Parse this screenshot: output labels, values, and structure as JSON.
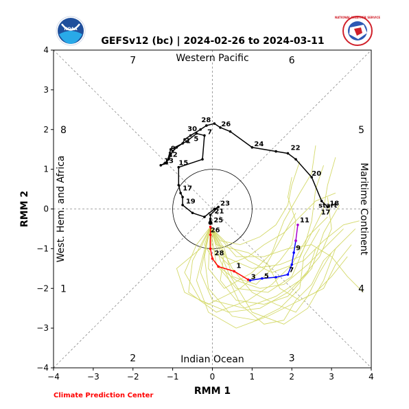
{
  "chart_data": {
    "type": "line",
    "title": "GEFSv12 (bc) | 2024-02-26 to 2024-03-11",
    "xlabel": "RMM 1",
    "ylabel": "RMM 2",
    "xlim": [
      -4,
      4
    ],
    "ylim": [
      -4,
      4
    ],
    "xticks": [
      "−4",
      "−3",
      "−2",
      "−1",
      "0",
      "1",
      "2",
      "3",
      "4"
    ],
    "yticks": [
      "−4",
      "−3",
      "−2",
      "−1",
      "0",
      "1",
      "2",
      "3",
      "4"
    ],
    "regions": {
      "top": "Western Pacific",
      "bottom": "Indian Ocean",
      "left": "West. Hem. and Africa",
      "right": "Maritime Continent"
    },
    "phases": [
      {
        "label": "1",
        "x": -3.75,
        "y": -2.0
      },
      {
        "label": "2",
        "x": -2.0,
        "y": -3.75
      },
      {
        "label": "3",
        "x": 2.0,
        "y": -3.75
      },
      {
        "label": "4",
        "x": 3.75,
        "y": -2.0
      },
      {
        "label": "5",
        "x": 3.75,
        "y": 2.0
      },
      {
        "label": "6",
        "x": 2.0,
        "y": 3.75
      },
      {
        "label": "7",
        "x": -2.0,
        "y": 3.75
      },
      {
        "label": "8",
        "x": -3.75,
        "y": 2.0
      }
    ],
    "credit": "Climate Prediction Center",
    "logos": {
      "left": "NOAA",
      "right": "NATIONAL WEATHER SERVICE"
    },
    "series": [
      {
        "color": "#000000",
        "points": [
          [
            2.9,
            0.05
          ],
          [
            2.75,
            0.2
          ],
          [
            2.5,
            0.8
          ],
          [
            2.1,
            1.25
          ],
          [
            1.9,
            1.4
          ],
          [
            1.6,
            1.45
          ],
          [
            1.0,
            1.55
          ],
          [
            0.45,
            1.95
          ],
          [
            0.2,
            2.05
          ],
          [
            0.05,
            2.15
          ],
          [
            -0.15,
            2.1
          ],
          [
            -0.3,
            2.0
          ],
          [
            -0.55,
            1.85
          ],
          [
            -0.7,
            1.75
          ],
          [
            -0.75,
            1.65
          ],
          [
            -0.9,
            1.55
          ],
          [
            -1.0,
            1.45
          ],
          [
            -1.05,
            1.35
          ],
          [
            -1.1,
            1.25
          ],
          [
            -1.2,
            1.15
          ],
          [
            -1.3,
            1.1
          ],
          [
            -1.15,
            1.15
          ],
          [
            -1.05,
            1.5
          ],
          [
            -0.65,
            1.7
          ],
          [
            -0.4,
            1.9
          ],
          [
            -0.2,
            1.85
          ],
          [
            -0.25,
            1.25
          ],
          [
            -0.85,
            1.05
          ],
          [
            -0.85,
            0.6
          ],
          [
            -0.8,
            0.4
          ],
          [
            -0.75,
            0.3
          ],
          [
            -0.75,
            0.1
          ],
          [
            -0.5,
            -0.1
          ],
          [
            -0.2,
            -0.2
          ],
          [
            0.05,
            0.0
          ],
          [
            0.15,
            0.05
          ],
          [
            -0.05,
            -0.15
          ],
          [
            -0.05,
            -0.25
          ],
          [
            -0.05,
            -0.3
          ]
        ],
        "labels": [
          {
            "text": "18",
            "x": 2.9,
            "y": 0.05
          },
          {
            "text": "start",
            "x": 2.62,
            "y": 0.0
          },
          {
            "text": "17",
            "x": 2.68,
            "y": -0.17
          },
          {
            "text": "20",
            "x": 2.45,
            "y": 0.8
          },
          {
            "text": "22",
            "x": 1.92,
            "y": 1.45
          },
          {
            "text": "24",
            "x": 1.0,
            "y": 1.55
          },
          {
            "text": "26",
            "x": 0.17,
            "y": 2.05
          },
          {
            "text": "28",
            "x": -0.33,
            "y": 2.15
          },
          {
            "text": "30",
            "x": -0.68,
            "y": 1.93
          },
          {
            "text": "7",
            "x": -0.18,
            "y": 1.85
          },
          {
            "text": "5",
            "x": -0.52,
            "y": 1.68
          },
          {
            "text": "1",
            "x": -0.72,
            "y": 1.62
          },
          {
            "text": "9",
            "x": -1.1,
            "y": 1.43
          },
          {
            "text": "12",
            "x": -1.17,
            "y": 1.28
          },
          {
            "text": "13",
            "x": -1.27,
            "y": 1.12
          },
          {
            "text": "15",
            "x": -0.9,
            "y": 1.07
          },
          {
            "text": "17",
            "x": -0.8,
            "y": 0.43
          },
          {
            "text": "19",
            "x": -0.72,
            "y": 0.1
          },
          {
            "text": "23",
            "x": 0.15,
            "y": 0.05
          },
          {
            "text": "21",
            "x": 0.0,
            "y": -0.15
          },
          {
            "text": "25",
            "x": -0.02,
            "y": -0.37
          },
          {
            "text": "26",
            "x": -0.1,
            "y": -0.62
          }
        ]
      },
      {
        "color": "#ff0000",
        "points": [
          [
            -0.05,
            -0.45
          ],
          [
            -0.05,
            -0.65
          ],
          [
            -0.05,
            -1.0
          ],
          [
            0.0,
            -1.25
          ],
          [
            0.15,
            -1.45
          ],
          [
            0.55,
            -1.57
          ],
          [
            0.9,
            -1.78
          ]
        ],
        "labels": [
          {
            "text": "28",
            "x": 0.0,
            "y": -1.2
          },
          {
            "text": "1",
            "x": 0.55,
            "y": -1.52
          },
          {
            "text": "3",
            "x": 0.92,
            "y": -1.8
          }
        ]
      },
      {
        "color": "#0000ff",
        "points": [
          [
            0.95,
            -1.8
          ],
          [
            1.25,
            -1.75
          ],
          [
            1.6,
            -1.72
          ],
          [
            1.9,
            -1.65
          ],
          [
            2.0,
            -1.4
          ],
          [
            2.05,
            -1.1
          ],
          [
            2.1,
            -0.8
          ]
        ],
        "labels": [
          {
            "text": "5",
            "x": 1.25,
            "y": -1.78
          },
          {
            "text": "7",
            "x": 1.88,
            "y": -1.62
          },
          {
            "text": "9",
            "x": 2.05,
            "y": -1.07
          }
        ]
      },
      {
        "color": "#aa00cc",
        "points": [
          [
            2.1,
            -0.8
          ],
          [
            2.15,
            -0.4
          ]
        ],
        "labels": [
          {
            "text": "11",
            "x": 2.15,
            "y": -0.37
          }
        ]
      }
    ],
    "ensemble_color": "#d4d96a",
    "ensemble": [
      [
        [
          -0.05,
          -0.45
        ],
        [
          0.3,
          -1.1
        ],
        [
          0.2,
          -1.8
        ],
        [
          0.6,
          -2.3
        ],
        [
          1.3,
          -2.4
        ],
        [
          1.9,
          -2.2
        ],
        [
          2.5,
          -1.5
        ],
        [
          2.8,
          -0.6
        ],
        [
          3.2,
          0.1
        ]
      ],
      [
        [
          -0.05,
          -0.45
        ],
        [
          -0.2,
          -1.2
        ],
        [
          -0.1,
          -2.0
        ],
        [
          0.5,
          -2.7
        ],
        [
          1.1,
          -2.8
        ],
        [
          1.7,
          -2.5
        ],
        [
          2.2,
          -2.0
        ],
        [
          2.3,
          -1.2
        ],
        [
          2.7,
          -0.5
        ]
      ],
      [
        [
          -0.05,
          -0.45
        ],
        [
          0.4,
          -0.9
        ],
        [
          0.9,
          -1.3
        ],
        [
          1.5,
          -1.6
        ],
        [
          2.3,
          -1.3
        ],
        [
          2.8,
          -0.8
        ],
        [
          3.3,
          -0.4
        ],
        [
          3.7,
          -0.3
        ]
      ],
      [
        [
          -0.05,
          -0.45
        ],
        [
          -0.4,
          -0.9
        ],
        [
          -0.7,
          -1.6
        ],
        [
          -0.3,
          -2.3
        ],
        [
          0.4,
          -2.6
        ],
        [
          1.2,
          -2.5
        ],
        [
          1.9,
          -2.1
        ],
        [
          2.4,
          -1.6
        ],
        [
          2.6,
          -1.0
        ]
      ],
      [
        [
          -0.05,
          -0.45
        ],
        [
          0.1,
          -1.4
        ],
        [
          0.6,
          -2.0
        ],
        [
          1.4,
          -2.1
        ],
        [
          2.0,
          -1.7
        ],
        [
          2.3,
          -1.0
        ],
        [
          2.5,
          -0.3
        ],
        [
          2.6,
          0.5
        ],
        [
          2.8,
          1.1
        ]
      ],
      [
        [
          -0.05,
          -0.45
        ],
        [
          0.2,
          -0.8
        ],
        [
          0.7,
          -0.9
        ],
        [
          1.2,
          -0.7
        ],
        [
          1.6,
          -0.4
        ],
        [
          1.9,
          0.1
        ],
        [
          2.0,
          0.6
        ],
        [
          2.2,
          1.2
        ]
      ],
      [
        [
          -0.05,
          -0.45
        ],
        [
          -0.5,
          -1.3
        ],
        [
          -0.6,
          -2.1
        ],
        [
          0.1,
          -2.6
        ],
        [
          0.9,
          -2.3
        ],
        [
          1.5,
          -1.9
        ],
        [
          2.0,
          -1.4
        ],
        [
          2.4,
          -0.7
        ],
        [
          2.9,
          -0.2
        ]
      ],
      [
        [
          -0.05,
          -0.45
        ],
        [
          0.5,
          -1.5
        ],
        [
          1.0,
          -2.1
        ],
        [
          1.6,
          -2.4
        ],
        [
          2.1,
          -2.6
        ],
        [
          2.4,
          -2.2
        ],
        [
          2.7,
          -1.6
        ],
        [
          3.0,
          -1.1
        ]
      ],
      [
        [
          -0.05,
          -0.45
        ],
        [
          0.0,
          -1.0
        ],
        [
          0.4,
          -1.4
        ],
        [
          0.9,
          -1.2
        ],
        [
          1.3,
          -0.9
        ],
        [
          1.8,
          -0.6
        ],
        [
          2.2,
          -0.2
        ],
        [
          2.6,
          0.2
        ],
        [
          3.1,
          0.4
        ]
      ],
      [
        [
          -0.05,
          -0.45
        ],
        [
          -0.3,
          -1.6
        ],
        [
          0.0,
          -2.3
        ],
        [
          0.8,
          -2.5
        ],
        [
          1.6,
          -2.2
        ],
        [
          2.2,
          -1.8
        ],
        [
          2.7,
          -1.2
        ],
        [
          3.0,
          -0.5
        ],
        [
          2.9,
          0.3
        ]
      ],
      [
        [
          -0.05,
          -0.45
        ],
        [
          0.3,
          -1.0
        ],
        [
          0.5,
          -1.7
        ],
        [
          1.1,
          -1.9
        ],
        [
          1.7,
          -1.3
        ],
        [
          2.0,
          -0.9
        ],
        [
          2.1,
          -0.3
        ],
        [
          1.9,
          0.3
        ],
        [
          2.0,
          0.8
        ]
      ],
      [
        [
          -0.05,
          -0.45
        ],
        [
          0.6,
          -1.2
        ],
        [
          1.3,
          -1.2
        ],
        [
          1.9,
          -1.0
        ],
        [
          2.5,
          -0.9
        ],
        [
          3.0,
          -1.2
        ],
        [
          3.4,
          -1.7
        ],
        [
          3.8,
          -2.1
        ]
      ],
      [
        [
          -0.05,
          -0.45
        ],
        [
          -0.3,
          -1.0
        ],
        [
          -0.9,
          -1.5
        ],
        [
          -0.7,
          -2.1
        ],
        [
          -0.1,
          -2.4
        ],
        [
          0.7,
          -2.0
        ],
        [
          1.3,
          -1.5
        ],
        [
          1.7,
          -0.8
        ],
        [
          2.1,
          -0.1
        ]
      ],
      [
        [
          -0.05,
          -0.45
        ],
        [
          0.2,
          -1.3
        ],
        [
          0.7,
          -2.4
        ],
        [
          1.3,
          -2.9
        ],
        [
          1.8,
          -2.8
        ],
        [
          2.1,
          -2.3
        ],
        [
          2.5,
          -1.9
        ],
        [
          2.8,
          -1.3
        ],
        [
          3.2,
          -0.9
        ]
      ],
      [
        [
          -0.05,
          -0.45
        ],
        [
          0.1,
          -0.9
        ],
        [
          0.9,
          -1.1
        ],
        [
          1.4,
          -1.4
        ],
        [
          1.7,
          -2.0
        ],
        [
          2.2,
          -2.3
        ],
        [
          2.8,
          -2.0
        ],
        [
          3.1,
          -1.4
        ],
        [
          3.5,
          -0.9
        ]
      ],
      [
        [
          -0.05,
          -0.45
        ],
        [
          -0.1,
          -1.5
        ],
        [
          0.3,
          -2.0
        ],
        [
          1.0,
          -1.6
        ],
        [
          1.5,
          -1.1
        ],
        [
          1.8,
          -0.3
        ],
        [
          2.2,
          0.4
        ],
        [
          2.5,
          0.9
        ],
        [
          2.6,
          1.6
        ]
      ],
      [
        [
          -0.05,
          -0.45
        ],
        [
          0.4,
          -1.6
        ],
        [
          1.0,
          -2.6
        ],
        [
          1.8,
          -2.9
        ],
        [
          2.4,
          -2.5
        ],
        [
          2.8,
          -1.8
        ],
        [
          3.1,
          -1.0
        ],
        [
          3.6,
          -0.5
        ]
      ],
      [
        [
          -0.05,
          -0.45
        ],
        [
          -0.2,
          -0.9
        ],
        [
          0.1,
          -1.4
        ],
        [
          0.6,
          -1.8
        ],
        [
          1.2,
          -2.0
        ],
        [
          1.8,
          -1.9
        ],
        [
          2.4,
          -1.4
        ],
        [
          2.9,
          -0.9
        ],
        [
          3.3,
          -0.5
        ]
      ],
      [
        [
          -0.05,
          -0.45
        ],
        [
          0.3,
          -1.2
        ],
        [
          1.0,
          -1.5
        ],
        [
          1.7,
          -1.4
        ],
        [
          2.2,
          -1.2
        ],
        [
          2.5,
          -0.6
        ],
        [
          2.8,
          0.0
        ],
        [
          2.9,
          0.6
        ],
        [
          3.1,
          1.3
        ]
      ],
      [
        [
          -0.05,
          -0.45
        ],
        [
          -0.4,
          -1.8
        ],
        [
          -0.1,
          -2.6
        ],
        [
          0.6,
          -3.0
        ],
        [
          1.4,
          -2.7
        ],
        [
          2.0,
          -2.4
        ],
        [
          2.6,
          -2.1
        ],
        [
          3.0,
          -1.7
        ],
        [
          3.4,
          -1.2
        ]
      ]
    ]
  }
}
